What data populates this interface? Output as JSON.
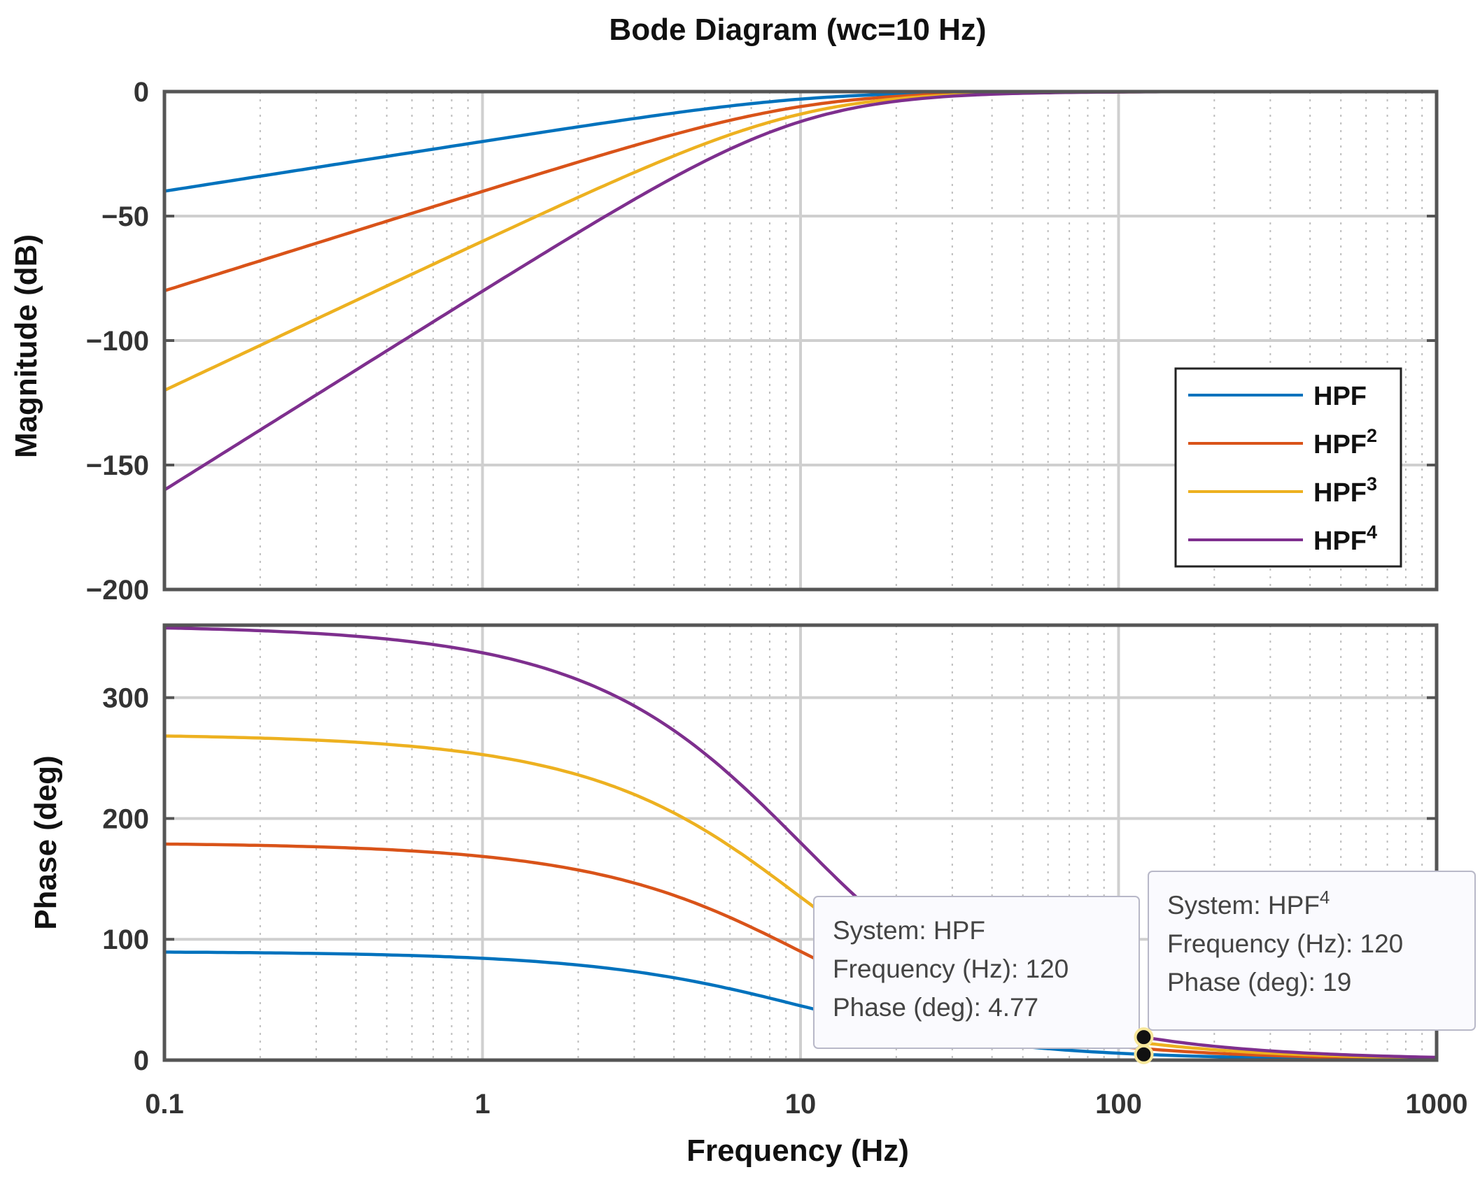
{
  "chart_data": {
    "type": "line",
    "title": "Bode Diagram (wc=10 Hz)",
    "xlabel": "Frequency  (Hz)",
    "xscale": "log",
    "xlim": [
      0.1,
      1000
    ],
    "xticks": [
      "0.1",
      "1",
      "10",
      "100",
      "1000"
    ],
    "cutoff_hz": 10,
    "colors": {
      "HPF": "#0072BD",
      "HPF2": "#D95319",
      "HPF3": "#EDB120",
      "HPF4": "#7E2F8E",
      "axis": "#555555",
      "grid_major": "#cfcfcf",
      "grid_minor": "#bdbdbd"
    },
    "magnitude": {
      "ylabel": "Magnitude (dB)",
      "ylim": [
        -200,
        0
      ],
      "yticks": [
        "0",
        "−50",
        "−100",
        "−150",
        "−200"
      ],
      "x": [
        0.1,
        0.3,
        1,
        3,
        10,
        30,
        100,
        1000
      ],
      "series": [
        {
          "name": "HPF",
          "values": [
            -40.0,
            -30.5,
            -20.0,
            -10.8,
            -3.0,
            -0.5,
            -0.04,
            0.0
          ]
        },
        {
          "name": "HPF2",
          "values": [
            -80.0,
            -61.0,
            -40.1,
            -21.6,
            -6.0,
            -0.9,
            -0.09,
            0.0
          ]
        },
        {
          "name": "HPF3",
          "values": [
            -120.0,
            -91.4,
            -60.1,
            -32.4,
            -9.0,
            -1.4,
            -0.13,
            0.0
          ]
        },
        {
          "name": "HPF4",
          "values": [
            -160.0,
            -121.9,
            -80.2,
            -43.2,
            -12.0,
            -1.8,
            -0.17,
            0.0
          ]
        }
      ]
    },
    "phase": {
      "ylabel": "Phase (deg)",
      "ylim": [
        0,
        360
      ],
      "yticks": [
        "0",
        "100",
        "200",
        "300"
      ],
      "x": [
        0.1,
        0.3,
        1,
        3,
        10,
        30,
        100,
        120,
        1000
      ],
      "series": [
        {
          "name": "HPF",
          "values": [
            89.4,
            88.3,
            84.3,
            73.3,
            45.0,
            18.4,
            5.7,
            4.77,
            0.6
          ]
        },
        {
          "name": "HPF2",
          "values": [
            178.9,
            176.6,
            168.6,
            146.6,
            90.0,
            36.9,
            11.4,
            9.5,
            1.1
          ]
        },
        {
          "name": "HPF3",
          "values": [
            268.3,
            264.8,
            252.9,
            219.9,
            135.0,
            55.3,
            17.1,
            14.3,
            1.7
          ]
        },
        {
          "name": "HPF4",
          "values": [
            357.7,
            353.1,
            337.2,
            293.2,
            180.0,
            73.7,
            22.8,
            19.0,
            2.3
          ]
        }
      ]
    },
    "legend": {
      "placement": "right-middle",
      "entries": [
        {
          "base": "HPF",
          "sup": ""
        },
        {
          "base": "HPF",
          "sup": "2"
        },
        {
          "base": "HPF",
          "sup": "3"
        },
        {
          "base": "HPF",
          "sup": "4"
        }
      ]
    },
    "datatips": [
      {
        "system": "HPF",
        "system_sup": "",
        "frequency": 120,
        "phase": 4.77,
        "lines": [
          "System: HPF",
          "Frequency (Hz): 120",
          "Phase (deg): 4.77"
        ]
      },
      {
        "system": "HPF",
        "system_sup": "4",
        "frequency": 120,
        "phase": 19,
        "lines": [
          "System: HPF",
          "Frequency (Hz): 120",
          "Phase (deg): 19"
        ]
      }
    ]
  }
}
